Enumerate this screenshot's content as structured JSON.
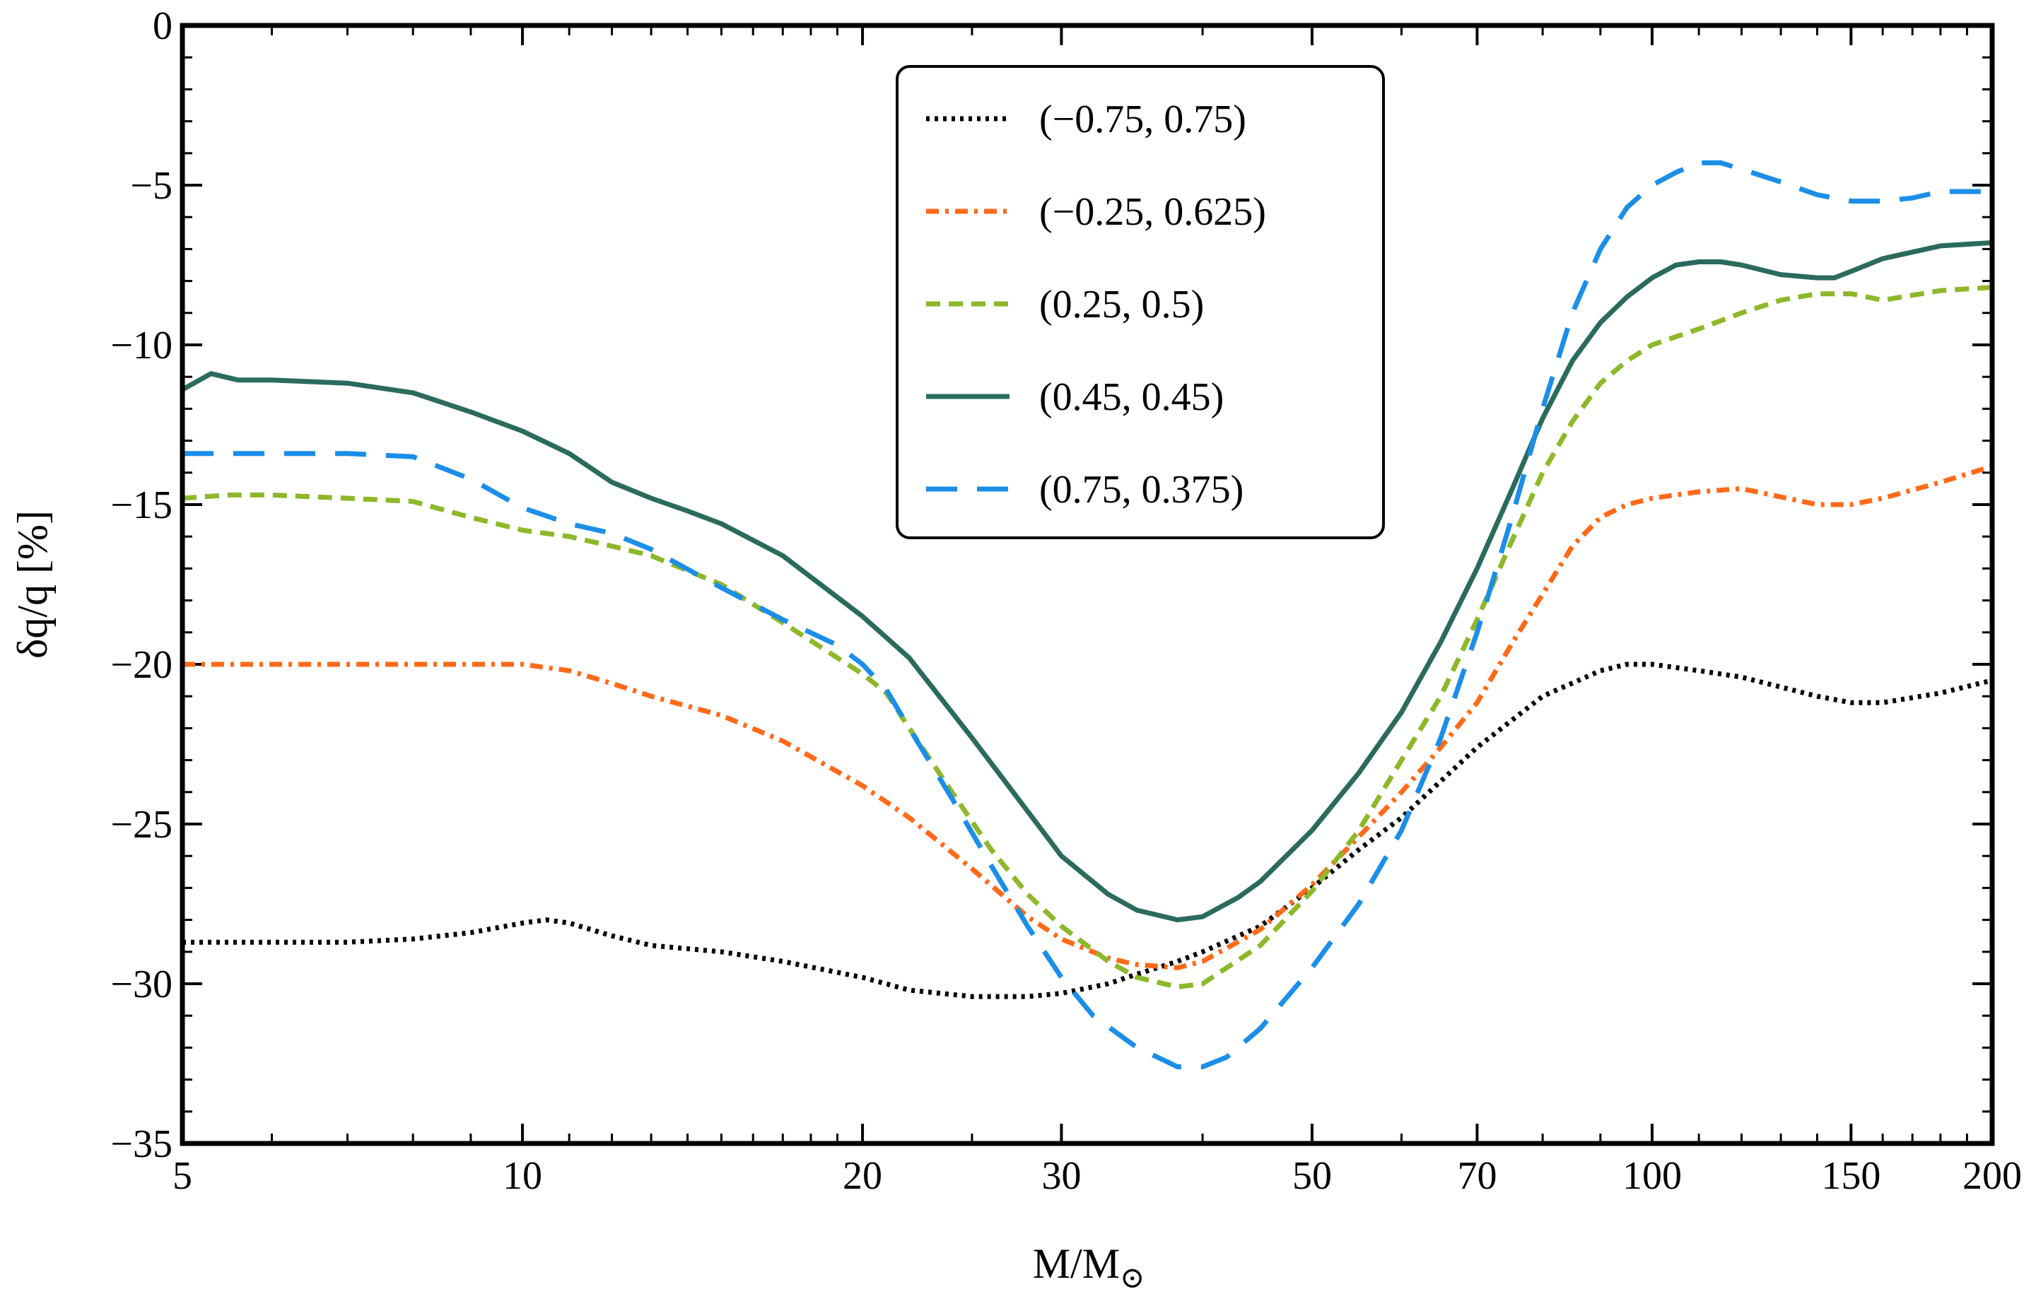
{
  "chart_data": {
    "type": "line",
    "xscale": "log",
    "xlabel": "M/M",
    "xlabel_sub": "⊙",
    "ylabel": "δq/q [%]",
    "xlim": [
      5,
      200
    ],
    "ylim": [
      -35,
      0
    ],
    "xticks": [
      5,
      10,
      20,
      30,
      50,
      70,
      100,
      150,
      200
    ],
    "xtick_labels": [
      "5",
      "10",
      "20",
      "30",
      "50",
      "70",
      "100",
      "150",
      "200"
    ],
    "yticks": [
      0,
      -5,
      -10,
      -15,
      -20,
      -25,
      -30,
      -35
    ],
    "ytick_labels": [
      "0",
      "−5",
      "−10",
      "−15",
      "−20",
      "−25",
      "−30",
      "−35"
    ],
    "legend_position": "top-center",
    "series": [
      {
        "name": "(−0.75, 0.75)",
        "color": "#000000",
        "style": "dotted",
        "x": [
          5,
          6,
          7,
          8,
          9,
          10,
          10.5,
          11,
          12,
          13,
          15,
          17,
          20,
          22,
          25,
          28,
          30,
          33,
          35,
          38,
          40,
          45,
          50,
          55,
          60,
          70,
          80,
          90,
          95,
          100,
          110,
          120,
          140,
          150,
          160,
          180,
          200
        ],
        "y": [
          -28.7,
          -28.7,
          -28.7,
          -28.6,
          -28.4,
          -28.1,
          -28.0,
          -28.1,
          -28.5,
          -28.8,
          -29.0,
          -29.3,
          -29.8,
          -30.2,
          -30.4,
          -30.4,
          -30.3,
          -30.0,
          -29.7,
          -29.3,
          -29.0,
          -28.2,
          -27.0,
          -25.8,
          -24.8,
          -22.6,
          -21.0,
          -20.2,
          -20.0,
          -20.0,
          -20.2,
          -20.4,
          -21.0,
          -21.2,
          -21.2,
          -20.9,
          -20.5
        ]
      },
      {
        "name": "(−0.25, 0.625)",
        "color": "#ff6a1a",
        "style": "dashdot",
        "x": [
          5,
          6,
          8,
          10,
          11,
          12,
          13,
          15,
          17,
          20,
          22,
          25,
          28,
          30,
          33,
          35,
          38,
          40,
          45,
          50,
          55,
          60,
          65,
          70,
          75,
          80,
          85,
          90,
          95,
          100,
          110,
          120,
          140,
          150,
          160,
          180,
          200
        ],
        "y": [
          -20.0,
          -20.0,
          -20.0,
          -20.0,
          -20.2,
          -20.6,
          -21.0,
          -21.6,
          -22.4,
          -23.8,
          -24.8,
          -26.4,
          -27.9,
          -28.6,
          -29.2,
          -29.4,
          -29.5,
          -29.3,
          -28.3,
          -26.9,
          -25.4,
          -24.0,
          -22.6,
          -21.2,
          -19.4,
          -17.8,
          -16.3,
          -15.4,
          -15.0,
          -14.8,
          -14.6,
          -14.5,
          -15.0,
          -15.0,
          -14.8,
          -14.3,
          -13.8
        ]
      },
      {
        "name": "(0.25, 0.5)",
        "color": "#8db82a",
        "style": "dashed",
        "x": [
          5,
          5.5,
          6,
          7,
          8,
          9,
          10,
          11,
          12,
          13,
          15,
          17,
          20,
          21,
          22,
          24,
          26,
          28,
          30,
          33,
          35,
          38,
          40,
          45,
          50,
          55,
          60,
          65,
          70,
          75,
          80,
          85,
          90,
          95,
          100,
          110,
          120,
          130,
          140,
          150,
          160,
          180,
          200
        ],
        "y": [
          -14.8,
          -14.7,
          -14.7,
          -14.8,
          -14.9,
          -15.4,
          -15.8,
          -16.0,
          -16.3,
          -16.6,
          -17.5,
          -18.7,
          -20.3,
          -20.9,
          -22.0,
          -24.0,
          -25.8,
          -27.2,
          -28.2,
          -29.3,
          -29.8,
          -30.1,
          -30.0,
          -28.8,
          -27.1,
          -25.2,
          -23.0,
          -21.0,
          -18.6,
          -16.2,
          -14.0,
          -12.4,
          -11.2,
          -10.5,
          -10.0,
          -9.5,
          -9.0,
          -8.6,
          -8.4,
          -8.4,
          -8.6,
          -8.3,
          -8.2
        ]
      },
      {
        "name": "(0.45, 0.45)",
        "color": "#2a6b5e",
        "style": "solid",
        "x": [
          5,
          5.3,
          5.6,
          6,
          7,
          8,
          9,
          10,
          11,
          12,
          13,
          14,
          15,
          17,
          20,
          22,
          25,
          28,
          30,
          33,
          35,
          37,
          38,
          40,
          43,
          45,
          50,
          55,
          60,
          65,
          70,
          75,
          80,
          85,
          90,
          95,
          100,
          105,
          110,
          115,
          120,
          130,
          140,
          145,
          150,
          160,
          180,
          200
        ],
        "y": [
          -11.4,
          -10.9,
          -11.1,
          -11.1,
          -11.2,
          -11.5,
          -12.1,
          -12.7,
          -13.4,
          -14.3,
          -14.8,
          -15.2,
          -15.6,
          -16.6,
          -18.5,
          -19.8,
          -22.3,
          -24.6,
          -26.0,
          -27.2,
          -27.7,
          -27.9,
          -28.0,
          -27.9,
          -27.3,
          -26.8,
          -25.2,
          -23.4,
          -21.5,
          -19.3,
          -17.0,
          -14.6,
          -12.3,
          -10.5,
          -9.3,
          -8.5,
          -7.9,
          -7.5,
          -7.4,
          -7.4,
          -7.5,
          -7.8,
          -7.9,
          -7.9,
          -7.7,
          -7.3,
          -6.9,
          -6.8
        ]
      },
      {
        "name": "(0.75, 0.375)",
        "color": "#1b8ee8",
        "style": "longdash",
        "x": [
          5,
          6,
          7,
          8,
          9,
          10,
          11,
          12,
          13,
          15,
          17,
          19,
          20,
          21,
          22,
          24,
          26,
          28,
          30,
          32,
          35,
          37,
          38,
          40,
          42,
          45,
          50,
          55,
          60,
          65,
          70,
          75,
          80,
          85,
          90,
          95,
          100,
          105,
          110,
          115,
          120,
          130,
          140,
          150,
          160,
          170,
          180,
          200
        ],
        "y": [
          -13.4,
          -13.4,
          -13.4,
          -13.5,
          -14.2,
          -15.1,
          -15.6,
          -15.9,
          -16.4,
          -17.6,
          -18.6,
          -19.4,
          -20.0,
          -20.8,
          -22.0,
          -24.2,
          -26.3,
          -28.2,
          -29.8,
          -31.0,
          -32.0,
          -32.4,
          -32.6,
          -32.6,
          -32.3,
          -31.4,
          -29.5,
          -27.5,
          -25.2,
          -22.3,
          -19.0,
          -15.5,
          -12.0,
          -9.0,
          -7.0,
          -5.7,
          -5.0,
          -4.6,
          -4.3,
          -4.3,
          -4.5,
          -4.9,
          -5.3,
          -5.5,
          -5.5,
          -5.4,
          -5.2,
          -5.2
        ]
      }
    ]
  }
}
